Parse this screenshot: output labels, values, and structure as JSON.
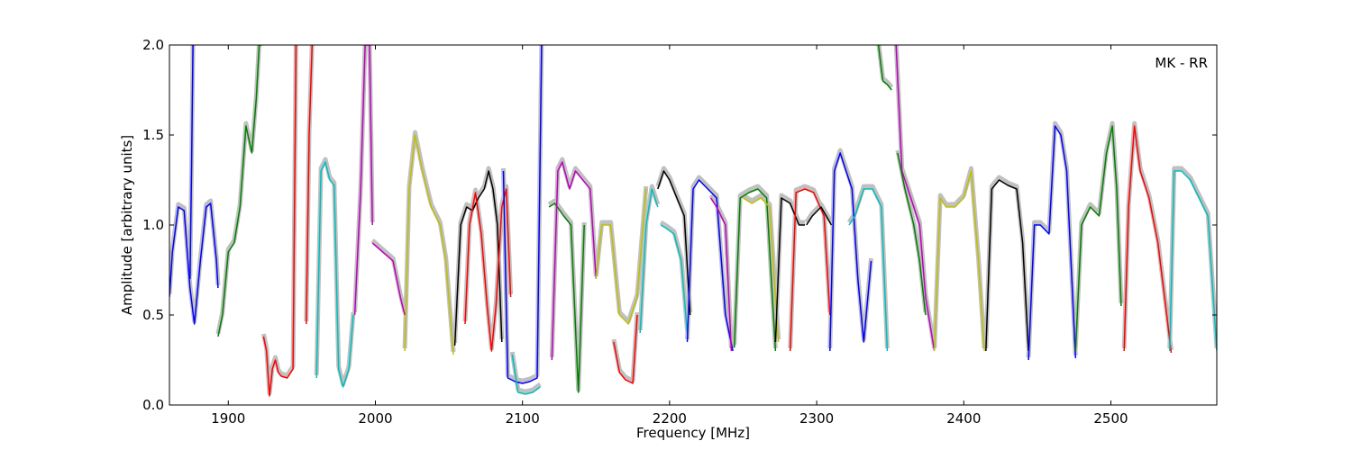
{
  "chart_data": {
    "type": "line",
    "title": "",
    "annotation": "MK - RR",
    "xlabel": "Frequency [MHz]",
    "ylabel": "Amplitude [arbitrary units]",
    "xlim": [
      1860,
      2572
    ],
    "ylim": [
      0.0,
      2.0
    ],
    "xticks": [
      1900,
      2000,
      2100,
      2200,
      2300,
      2400,
      2500
    ],
    "yticks": [
      0.0,
      0.5,
      1.0,
      1.5,
      2.0
    ],
    "xtick_labels": [
      "1900",
      "2000",
      "2100",
      "2200",
      "2300",
      "2400",
      "2500"
    ],
    "ytick_labels": [
      "0.0",
      "0.5",
      "1.0",
      "1.5",
      "2.0"
    ],
    "grid": false,
    "legend": "none",
    "background_envelope_color": "#c0c0c0",
    "series": [
      {
        "color": "#0000ff",
        "x": [
          1860,
          1862,
          1866,
          1870,
          1874,
          1877,
          1881,
          1885,
          1888,
          1892,
          1893
        ],
        "y": [
          0.6,
          0.85,
          1.1,
          1.08,
          0.65,
          0.45,
          0.8,
          1.1,
          1.12,
          0.8,
          0.65
        ]
      },
      {
        "color": "#0000ff",
        "x": [
          1874,
          1875,
          1876,
          1876.5
        ],
        "y": [
          0.7,
          1.3,
          2.0,
          2.0
        ]
      },
      {
        "color": "#008000",
        "x": [
          1893,
          1896,
          1900,
          1904,
          1908,
          1912,
          1916,
          1919,
          1921,
          1923
        ],
        "y": [
          0.38,
          0.5,
          0.85,
          0.9,
          1.1,
          1.55,
          1.4,
          1.7,
          2.0,
          2.0
        ]
      },
      {
        "color": "#ff0000",
        "x": [
          1924,
          1926,
          1928,
          1930,
          1932,
          1934,
          1936,
          1940,
          1944,
          1946
        ],
        "y": [
          0.38,
          0.3,
          0.05,
          0.2,
          0.25,
          0.18,
          0.16,
          0.15,
          0.2,
          2.0
        ]
      },
      {
        "color": "#ff0000",
        "x": [
          1953,
          1955,
          1957
        ],
        "y": [
          0.45,
          1.5,
          2.0
        ]
      },
      {
        "color": "#00bfbf",
        "x": [
          1960,
          1963,
          1966,
          1969,
          1972,
          1975,
          1978,
          1982,
          1985
        ],
        "y": [
          0.15,
          1.3,
          1.35,
          1.25,
          1.22,
          0.2,
          0.1,
          0.2,
          0.5
        ]
      },
      {
        "color": "#bf00bf",
        "x": [
          1986,
          1990,
          1993,
          1996,
          1998
        ],
        "y": [
          0.5,
          1.2,
          2.0,
          2.0,
          1.0
        ]
      },
      {
        "color": "#bf00bf",
        "x": [
          1998,
          2005,
          2012,
          2017,
          2020
        ],
        "y": [
          0.9,
          0.85,
          0.8,
          0.6,
          0.5
        ]
      },
      {
        "color": "#bfbf00",
        "x": [
          2020,
          2023,
          2027,
          2032,
          2038,
          2044,
          2048,
          2053
        ],
        "y": [
          0.3,
          1.2,
          1.5,
          1.3,
          1.1,
          1.0,
          0.8,
          0.28
        ]
      },
      {
        "color": "#000000",
        "x": [
          2054,
          2058,
          2062,
          2066,
          2070,
          2074,
          2077,
          2080,
          2083,
          2086
        ],
        "y": [
          0.33,
          1.0,
          1.1,
          1.08,
          1.15,
          1.2,
          1.3,
          1.2,
          1.0,
          0.35
        ]
      },
      {
        "color": "#ff0000",
        "x": [
          2061,
          2064,
          2068,
          2072,
          2076,
          2079,
          2082,
          2086,
          2089,
          2092
        ],
        "y": [
          0.45,
          1.0,
          1.18,
          0.95,
          0.55,
          0.3,
          0.55,
          1.1,
          1.2,
          0.6
        ]
      },
      {
        "color": "#0000ff",
        "x": [
          2087,
          2090,
          2095,
          2100,
          2105,
          2110,
          2113
        ],
        "y": [
          1.3,
          0.15,
          0.13,
          0.12,
          0.13,
          0.15,
          2.0
        ]
      },
      {
        "color": "#00bfbf",
        "x": [
          2093,
          2097,
          2102,
          2107,
          2112
        ],
        "y": [
          0.28,
          0.07,
          0.06,
          0.07,
          0.1
        ]
      },
      {
        "color": "#008000",
        "x": [
          2118,
          2122,
          2128,
          2133,
          2138,
          2142
        ],
        "y": [
          1.1,
          1.12,
          1.05,
          1.0,
          0.07,
          1.0
        ]
      },
      {
        "color": "#bf00bf",
        "x": [
          2120,
          2124,
          2127,
          2132,
          2136,
          2141,
          2146,
          2150
        ],
        "y": [
          0.25,
          1.3,
          1.35,
          1.2,
          1.3,
          1.25,
          1.2,
          0.7
        ]
      },
      {
        "color": "#bfbf00",
        "x": [
          2150,
          2154,
          2160,
          2166,
          2172,
          2178,
          2184
        ],
        "y": [
          0.7,
          1.0,
          1.0,
          0.5,
          0.45,
          0.6,
          1.2
        ]
      },
      {
        "color": "#ff0000",
        "x": [
          2162,
          2166,
          2170,
          2175,
          2178
        ],
        "y": [
          0.35,
          0.18,
          0.14,
          0.12,
          0.5
        ]
      },
      {
        "color": "#00bfbf",
        "x": [
          2180,
          2184,
          2188,
          2192
        ],
        "y": [
          0.4,
          1.0,
          1.2,
          1.1
        ]
      },
      {
        "color": "#000000",
        "x": [
          2192,
          2196,
          2200,
          2205,
          2210,
          2214
        ],
        "y": [
          1.2,
          1.3,
          1.25,
          1.15,
          1.05,
          0.5
        ]
      },
      {
        "color": "#00bfbf",
        "x": [
          2194,
          2198,
          2203,
          2208,
          2212
        ],
        "y": [
          1.0,
          0.98,
          0.95,
          0.8,
          0.4
        ]
      },
      {
        "color": "#0000ff",
        "x": [
          2212,
          2216,
          2220,
          2226,
          2232,
          2238,
          2243
        ],
        "y": [
          0.35,
          1.2,
          1.25,
          1.2,
          1.15,
          0.5,
          0.3
        ]
      },
      {
        "color": "#bf00bf",
        "x": [
          2228,
          2232,
          2238,
          2242
        ],
        "y": [
          1.15,
          1.1,
          1.0,
          0.3
        ]
      },
      {
        "color": "#008000",
        "x": [
          2244,
          2248,
          2254,
          2260,
          2266,
          2272
        ],
        "y": [
          0.32,
          1.15,
          1.18,
          1.2,
          1.15,
          0.3
        ]
      },
      {
        "color": "#bfbf00",
        "x": [
          2250,
          2256,
          2262,
          2268,
          2274
        ],
        "y": [
          1.15,
          1.12,
          1.15,
          1.1,
          0.35
        ]
      },
      {
        "color": "#000000",
        "x": [
          2272,
          2276,
          2282,
          2288,
          2292
        ],
        "y": [
          0.35,
          1.15,
          1.12,
          1.0,
          1.0
        ]
      },
      {
        "color": "#ff0000",
        "x": [
          2282,
          2286,
          2292,
          2298,
          2305,
          2309
        ],
        "y": [
          0.3,
          1.18,
          1.2,
          1.18,
          1.05,
          0.5
        ]
      },
      {
        "color": "#000000",
        "x": [
          2293,
          2297,
          2303,
          2310
        ],
        "y": [
          1.0,
          1.05,
          1.1,
          1.0
        ]
      },
      {
        "color": "#0000ff",
        "x": [
          2309,
          2312,
          2316,
          2320,
          2324,
          2328,
          2332,
          2337
        ],
        "y": [
          0.3,
          1.3,
          1.4,
          1.3,
          1.2,
          0.7,
          0.35,
          0.8
        ]
      },
      {
        "color": "#00bfbf",
        "x": [
          2322,
          2326,
          2332,
          2338,
          2344,
          2348
        ],
        "y": [
          1.0,
          1.05,
          1.2,
          1.2,
          1.1,
          0.3
        ]
      },
      {
        "color": "#008000",
        "x": [
          2342,
          2345,
          2348,
          2351
        ],
        "y": [
          2.0,
          1.8,
          1.78,
          1.75
        ]
      },
      {
        "color": "#bf00bf",
        "x": [
          2354,
          2358,
          2362,
          2366,
          2370,
          2374,
          2380
        ],
        "y": [
          2.0,
          1.3,
          1.2,
          1.1,
          1.0,
          0.6,
          0.3
        ]
      },
      {
        "color": "#008000",
        "x": [
          2355,
          2360,
          2366,
          2370,
          2374
        ],
        "y": [
          1.4,
          1.2,
          1.0,
          0.8,
          0.5
        ]
      },
      {
        "color": "#bfbf00",
        "x": [
          2380,
          2384,
          2388,
          2394,
          2400,
          2405,
          2410,
          2414
        ],
        "y": [
          0.3,
          1.15,
          1.1,
          1.1,
          1.15,
          1.3,
          0.8,
          0.3
        ]
      },
      {
        "color": "#000000",
        "x": [
          2415,
          2419,
          2424,
          2430,
          2436,
          2440,
          2444
        ],
        "y": [
          0.3,
          1.2,
          1.25,
          1.22,
          1.2,
          0.9,
          0.3
        ]
      },
      {
        "color": "#0000ff",
        "x": [
          2444,
          2448,
          2452,
          2458,
          2462,
          2466,
          2470,
          2476
        ],
        "y": [
          0.25,
          1.0,
          1.0,
          0.95,
          1.55,
          1.5,
          1.3,
          0.26
        ]
      },
      {
        "color": "#008000",
        "x": [
          2476,
          2480,
          2486,
          2492,
          2497,
          2501,
          2504,
          2507
        ],
        "y": [
          0.3,
          1.0,
          1.1,
          1.05,
          1.4,
          1.55,
          1.2,
          0.55
        ]
      },
      {
        "color": "#ff0000",
        "x": [
          2509,
          2512,
          2516,
          2520,
          2526,
          2532,
          2538,
          2541
        ],
        "y": [
          0.3,
          1.1,
          1.55,
          1.3,
          1.15,
          0.9,
          0.5,
          0.29
        ]
      },
      {
        "color": "#00bfbf",
        "x": [
          2540,
          2543,
          2548,
          2554,
          2560,
          2566,
          2572
        ],
        "y": [
          0.3,
          1.3,
          1.3,
          1.25,
          1.15,
          1.05,
          0.3
        ]
      }
    ]
  }
}
